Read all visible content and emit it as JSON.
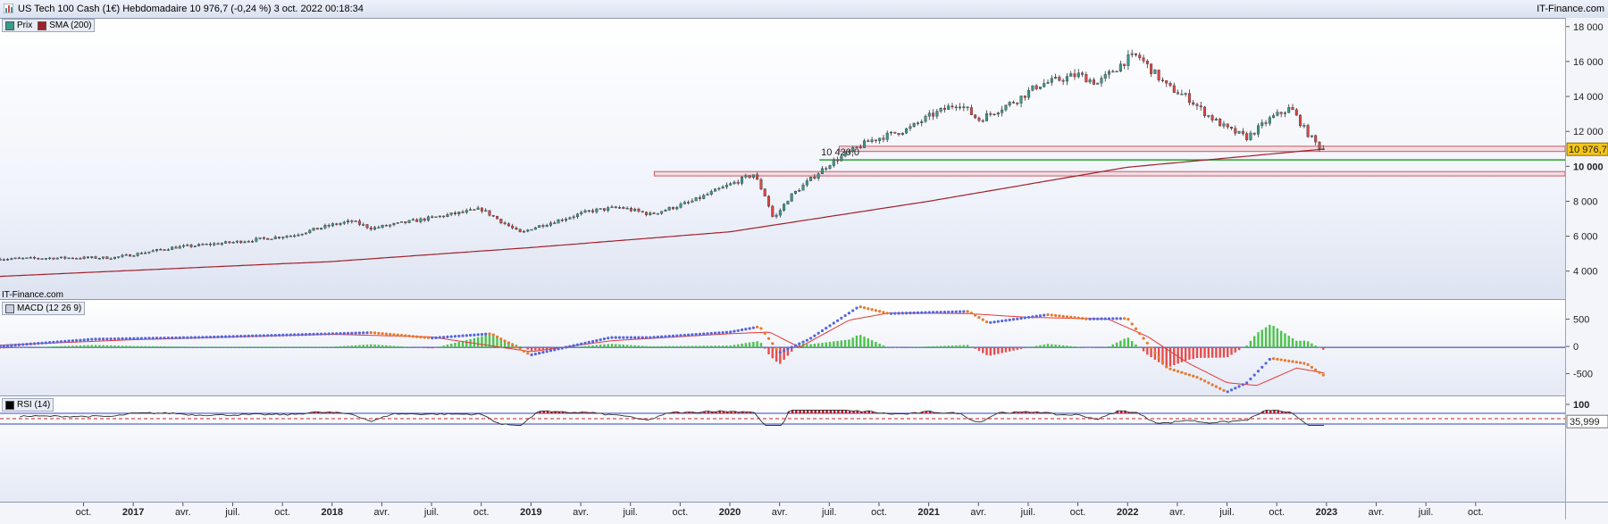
{
  "window": {
    "title": "US Tech 100 Cash (1€) Hebdomadaire 10 976,7 (-0,24 %) 3 oct. 2022 00:18:34",
    "brand": "IT-Finance.com"
  },
  "colors": {
    "up": "#3a9a8c",
    "down": "#e04545",
    "sma": "#a0212a",
    "macd_line": "#e8792b",
    "signal": "#e53935",
    "support": "#2ca02c",
    "hist_up": "#4cc24c",
    "hist_down": "#e74c4c",
    "rsi": "#333333"
  },
  "chart_data": [
    {
      "type": "candlestick",
      "panel": "price",
      "legend": [
        {
          "label": "Prix",
          "color": "#3a9a8c"
        },
        {
          "label": "SMA (200)",
          "color": "#a0212a"
        }
      ],
      "watermark": "IT-Finance.com",
      "y_ticks": [
        "4 000",
        "6 000",
        "8 000",
        "10 000",
        "12 000",
        "14 000",
        "16 000",
        "18 000"
      ],
      "y_tick_values": [
        4000,
        6000,
        8000,
        10000,
        12000,
        14000,
        16000,
        18000
      ],
      "ylim": [
        2400,
        18500
      ],
      "last_price_label": "10 976,7",
      "last_price": 10976.7,
      "support_label": "10 420,0",
      "support_value": 10420.0,
      "zones": [
        {
          "from": 9500,
          "to": 9750,
          "start": 2019.62
        },
        {
          "from": 10900,
          "to": 11200,
          "start": 2020.55
        }
      ],
      "close_path": [
        [
          2016.33,
          4750
        ],
        [
          2016.6,
          4800
        ],
        [
          2016.9,
          4820
        ],
        [
          2017.0,
          5000
        ],
        [
          2017.2,
          5400
        ],
        [
          2017.5,
          5700
        ],
        [
          2017.8,
          6100
        ],
        [
          2018.0,
          6700
        ],
        [
          2018.1,
          6900
        ],
        [
          2018.2,
          6500
        ],
        [
          2018.4,
          6900
        ],
        [
          2018.6,
          7300
        ],
        [
          2018.75,
          7600
        ],
        [
          2018.85,
          6900
        ],
        [
          2018.95,
          6200
        ],
        [
          2019.0,
          6500
        ],
        [
          2019.3,
          7500
        ],
        [
          2019.45,
          7700
        ],
        [
          2019.6,
          7300
        ],
        [
          2019.8,
          8000
        ],
        [
          2020.0,
          9000
        ],
        [
          2020.12,
          9600
        ],
        [
          2020.18,
          8300
        ],
        [
          2020.22,
          7000
        ],
        [
          2020.3,
          8300
        ],
        [
          2020.5,
          10200
        ],
        [
          2020.7,
          11500
        ],
        [
          2020.9,
          12200
        ],
        [
          2021.0,
          12900
        ],
        [
          2021.15,
          13700
        ],
        [
          2021.25,
          12700
        ],
        [
          2021.45,
          13900
        ],
        [
          2021.55,
          14700
        ],
        [
          2021.75,
          15300
        ],
        [
          2021.85,
          14800
        ],
        [
          2022.0,
          16200
        ],
        [
          2022.05,
          16400
        ],
        [
          2022.2,
          14600
        ],
        [
          2022.3,
          14000
        ],
        [
          2022.4,
          13000
        ],
        [
          2022.5,
          12200
        ],
        [
          2022.6,
          11700
        ],
        [
          2022.72,
          12800
        ],
        [
          2022.82,
          13400
        ],
        [
          2022.9,
          12000
        ],
        [
          2022.96,
          11200
        ],
        [
          2023.0,
          10976
        ]
      ],
      "sma_path": [
        [
          2016.33,
          3750
        ],
        [
          2018.0,
          4600
        ],
        [
          2019.0,
          5400
        ],
        [
          2020.0,
          6300
        ],
        [
          2021.0,
          8050
        ],
        [
          2022.0,
          10000
        ],
        [
          2023.0,
          11050
        ]
      ]
    },
    {
      "type": "line",
      "panel": "macd",
      "legend": [
        {
          "label": "MACD (12 26 9)",
          "color": "#444"
        }
      ],
      "y_ticks": [
        "-500",
        "0",
        "500"
      ],
      "y_tick_values": [
        -500,
        0,
        500
      ],
      "ylim": [
        -900,
        870
      ],
      "macd_path": [
        [
          2016.33,
          20
        ],
        [
          2016.8,
          150
        ],
        [
          2017.3,
          180
        ],
        [
          2017.8,
          230
        ],
        [
          2018.2,
          270
        ],
        [
          2018.5,
          170
        ],
        [
          2018.8,
          250
        ],
        [
          2019.0,
          -140
        ],
        [
          2019.2,
          20
        ],
        [
          2019.4,
          180
        ],
        [
          2019.6,
          180
        ],
        [
          2020.0,
          280
        ],
        [
          2020.15,
          380
        ],
        [
          2020.25,
          -100
        ],
        [
          2020.4,
          150
        ],
        [
          2020.65,
          750
        ],
        [
          2020.8,
          620
        ],
        [
          2021.2,
          660
        ],
        [
          2021.3,
          450
        ],
        [
          2021.6,
          600
        ],
        [
          2021.8,
          520
        ],
        [
          2022.0,
          530
        ],
        [
          2022.2,
          -380
        ],
        [
          2022.35,
          -550
        ],
        [
          2022.5,
          -820
        ],
        [
          2022.6,
          -650
        ],
        [
          2022.72,
          -200
        ],
        [
          2022.9,
          -300
        ],
        [
          2023.0,
          -550
        ]
      ],
      "signal_path": [
        [
          2016.33,
          40
        ],
        [
          2017.0,
          140
        ],
        [
          2018.0,
          240
        ],
        [
          2018.5,
          190
        ],
        [
          2019.0,
          -80
        ],
        [
          2019.4,
          120
        ],
        [
          2020.0,
          250
        ],
        [
          2020.2,
          280
        ],
        [
          2020.35,
          0
        ],
        [
          2020.6,
          500
        ],
        [
          2020.8,
          630
        ],
        [
          2021.2,
          620
        ],
        [
          2021.5,
          550
        ],
        [
          2021.9,
          520
        ],
        [
          2022.1,
          200
        ],
        [
          2022.3,
          -280
        ],
        [
          2022.5,
          -650
        ],
        [
          2022.65,
          -700
        ],
        [
          2022.85,
          -380
        ],
        [
          2023.0,
          -480
        ]
      ]
    },
    {
      "type": "line",
      "panel": "rsi",
      "legend": [
        {
          "label": "RSI (14)",
          "color": "#000"
        }
      ],
      "y_ticks": [
        "100"
      ],
      "y_tick_values": [
        100
      ],
      "last_value_label": "35,999",
      "last_value": 35.999,
      "upper": 70,
      "lower": 30,
      "middle": 50
    }
  ],
  "x_axis": {
    "labels": [
      "oct.",
      "2017",
      "avr.",
      "juil.",
      "oct.",
      "2018",
      "avr.",
      "juil.",
      "oct.",
      "2019",
      "avr.",
      "juil.",
      "oct.",
      "2020",
      "avr.",
      "juil.",
      "oct.",
      "2021",
      "avr.",
      "juil.",
      "oct.",
      "2022",
      "avr.",
      "juil.",
      "oct.",
      "2023",
      "avr.",
      "juil.",
      "oct."
    ],
    "values": [
      2016.75,
      2017.0,
      2017.25,
      2017.5,
      2017.75,
      2018.0,
      2018.25,
      2018.5,
      2018.75,
      2019.0,
      2019.25,
      2019.5,
      2019.75,
      2020.0,
      2020.25,
      2020.5,
      2020.75,
      2021.0,
      2021.25,
      2021.5,
      2021.75,
      2022.0,
      2022.25,
      2022.5,
      2022.75,
      2023.0,
      2023.25,
      2023.5,
      2023.75
    ],
    "bold": [
      false,
      true,
      false,
      false,
      false,
      true,
      false,
      false,
      false,
      true,
      false,
      false,
      false,
      true,
      false,
      false,
      false,
      true,
      false,
      false,
      false,
      true,
      false,
      false,
      false,
      true,
      false,
      false,
      false
    ],
    "range": [
      2016.33,
      2024.2
    ]
  }
}
